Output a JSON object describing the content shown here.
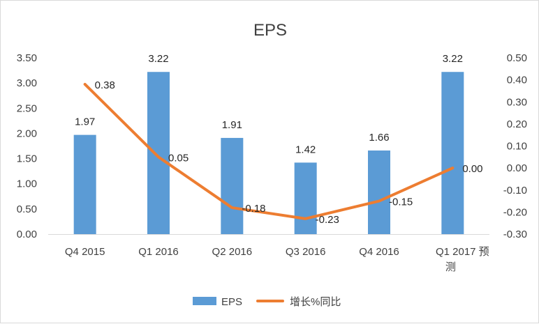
{
  "chart_data": {
    "type": "bar",
    "title": "EPS",
    "categories": [
      "Q4 2015",
      "Q1 2016",
      "Q2 2016",
      "Q3 2016",
      "Q4 2016",
      "Q1 2017 预测"
    ],
    "series": [
      {
        "name": "EPS",
        "type": "bar",
        "axis": "left",
        "color": "#5b9bd5",
        "values": [
          1.97,
          3.22,
          1.91,
          1.42,
          1.66,
          3.22
        ],
        "labels": [
          "1.97",
          "3.22",
          "1.91",
          "1.42",
          "1.66",
          "3.22"
        ]
      },
      {
        "name": "增长%同比",
        "type": "line",
        "axis": "right",
        "color": "#ed7d31",
        "values": [
          0.38,
          0.05,
          -0.18,
          -0.23,
          -0.15,
          0.0
        ],
        "labels": [
          "0.38",
          "0.05",
          "-0.18",
          "-0.23",
          "-0.15",
          "0.00"
        ]
      }
    ],
    "y_left": {
      "ylim": [
        0,
        3.5
      ],
      "ticks": [
        "0.00",
        "0.50",
        "1.00",
        "1.50",
        "2.00",
        "2.50",
        "3.00",
        "3.50"
      ]
    },
    "y_right": {
      "ylim": [
        -0.3,
        0.5
      ],
      "ticks": [
        "-0.30",
        "-0.20",
        "-0.10",
        "0.00",
        "0.10",
        "0.20",
        "0.30",
        "0.40",
        "0.50"
      ]
    },
    "grid": false,
    "legend": "bottom"
  }
}
